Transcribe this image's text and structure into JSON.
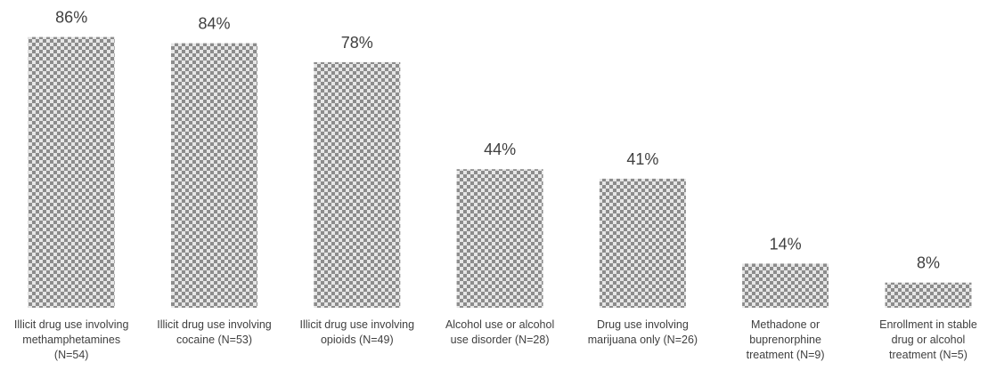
{
  "chart_data": {
    "type": "bar",
    "title": "",
    "xlabel": "",
    "ylabel": "",
    "ylim": [
      0,
      100
    ],
    "grid": false,
    "legend": "none",
    "bar_color": "#8c8c8c",
    "bar_pattern": "checkered",
    "categories": [
      [
        "Illicit drug use involving",
        "methamphetamines",
        "(N=54)"
      ],
      [
        "Illicit drug use involving",
        "cocaine (N=53)"
      ],
      [
        "Illicit drug use involving",
        "opioids (N=49)"
      ],
      [
        "Alcohol use or alcohol",
        "use disorder (N=28)"
      ],
      [
        "Drug use involving",
        "marijuana only (N=26)"
      ],
      [
        "Methadone or",
        "buprenorphine",
        "treatment (N=9)"
      ],
      [
        "Enrollment in stable",
        "drug or alcohol",
        "treatment (N=5)"
      ]
    ],
    "values": [
      86,
      84,
      78,
      44,
      41,
      14,
      8
    ],
    "data_labels": [
      "86%",
      "84%",
      "78%",
      "44%",
      "41%",
      "14%",
      "8%"
    ]
  }
}
